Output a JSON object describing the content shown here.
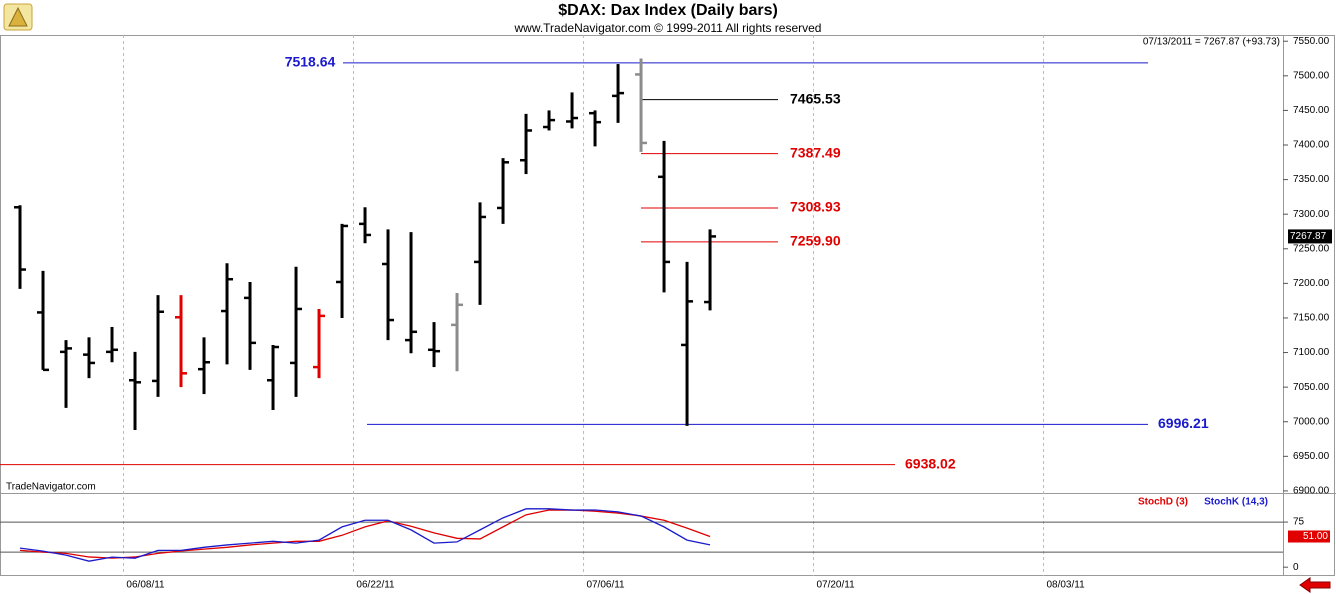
{
  "chart_data": [
    {
      "type": "ohlc",
      "title": "$DAX:  Dax Index  (Daily bars)",
      "subtitle": "www.TradeNavigator.com © 1999-2011 All rights reserved",
      "last_bar_info": "07/13/2011 = 7267.87 (+93.73)",
      "last_price": 7267.87,
      "watermark": "TradeNavigator.com",
      "open": [
        7310,
        7158,
        7101,
        7097,
        7101,
        7060,
        7059,
        7151,
        7076,
        7160,
        7179,
        7060,
        7085,
        7079,
        7202,
        7286,
        7228,
        7118,
        7104,
        7140,
        7231,
        7309,
        7378,
        7426,
        7434,
        7446,
        7471,
        7502,
        7354,
        7111,
        7173
      ],
      "high": [
        7313,
        7218,
        7118,
        7122,
        7137,
        7101,
        7183,
        7183,
        7122,
        7229,
        7202,
        7111,
        7224,
        7163,
        7286,
        7310,
        7278,
        7274,
        7144,
        7186,
        7317,
        7381,
        7445,
        7450,
        7476,
        7450,
        7517,
        7525,
        7406,
        7231,
        7278
      ],
      "low": [
        7192,
        7075,
        7020,
        7063,
        7086,
        6988,
        7036,
        7050,
        7040,
        7083,
        7075,
        7017,
        7036,
        7063,
        7150,
        7258,
        7118,
        7099,
        7079,
        7073,
        7169,
        7286,
        7358,
        7421,
        7424,
        7398,
        7432,
        7390,
        7187,
        6994,
        7161
      ],
      "close": [
        7220,
        7075,
        7106,
        7085,
        7104,
        7057,
        7159,
        7070,
        7086,
        7206,
        7114,
        7108,
        7163,
        7153,
        7283,
        7270,
        7147,
        7130,
        7102,
        7169,
        7296,
        7375,
        7421,
        7436,
        7439,
        7433,
        7475,
        7403,
        7231,
        7174,
        7267.87
      ],
      "colors": [
        "#000000",
        "#000000",
        "#000000",
        "#000000",
        "#000000",
        "#000000",
        "#000000",
        "#e00000",
        "#000000",
        "#000000",
        "#000000",
        "#000000",
        "#000000",
        "#e00000",
        "#000000",
        "#000000",
        "#000000",
        "#000000",
        "#000000",
        "#8c8c8c",
        "#000000",
        "#000000",
        "#000000",
        "#000000",
        "#000000",
        "#000000",
        "#000000",
        "#8c8c8c",
        "#000000",
        "#000000",
        "#000000"
      ],
      "xlim": [
        -0.87,
        54.91
      ],
      "xticks": [
        {
          "value": 4.5,
          "label": "06/08/11"
        },
        {
          "value": 14.5,
          "label": "06/22/11"
        },
        {
          "value": 24.5,
          "label": "07/06/11"
        },
        {
          "value": 34.5,
          "label": "07/20/11"
        },
        {
          "value": 44.5,
          "label": "08/03/11"
        }
      ],
      "ylim": [
        6897,
        7559
      ],
      "yticks": [
        {
          "value": 7550,
          "label": "7550.00"
        },
        {
          "value": 7500,
          "label": "7500.00"
        },
        {
          "value": 7450,
          "label": "7450.00"
        },
        {
          "value": 7400,
          "label": "7400.00"
        },
        {
          "value": 7350,
          "label": "7350.00"
        },
        {
          "value": 7300,
          "label": "7300.00"
        },
        {
          "value": 7250,
          "label": "7250.00"
        },
        {
          "value": 7200,
          "label": "7200.00"
        },
        {
          "value": 7150,
          "label": "7150.00"
        },
        {
          "value": 7100,
          "label": "7100.00"
        },
        {
          "value": 7050,
          "label": "7050.00"
        },
        {
          "value": 7000,
          "label": "7000.00"
        },
        {
          "value": 6950,
          "label": "6950.00"
        },
        {
          "value": 6900,
          "label": "6900.00"
        }
      ],
      "levels": [
        {
          "price": 7518.64,
          "color": "#1a1acc"
        },
        {
          "price": 7465.53,
          "color": "#000000"
        },
        {
          "price": 7387.49,
          "color": "#e00000"
        },
        {
          "price": 7308.93,
          "color": "#e00000"
        },
        {
          "price": {
            "value": 7259.9,
            "label": "7259.90"
          },
          "color": "#e00000"
        },
        {
          "price": 6996.21,
          "color": "#1a1acc"
        },
        {
          "price": 6938.02,
          "color": "#e00000"
        }
      ]
    },
    {
      "type": "line",
      "series": [
        {
          "name": "StochD (3)",
          "color": "#e00000",
          "value_label": "51.00",
          "values": [
            28,
            25,
            23,
            17,
            15,
            17,
            23,
            27,
            30,
            33,
            37,
            40,
            43,
            43,
            53,
            67,
            77,
            68,
            57,
            48,
            47,
            67,
            87,
            95,
            95,
            93,
            90,
            85,
            78,
            65,
            51
          ]
        },
        {
          "name": "StochK (14,3)",
          "color": "#1a1acc",
          "values": [
            31.7,
            26.7,
            20,
            10,
            16.7,
            15,
            28,
            28,
            33,
            37,
            40,
            43,
            40,
            45,
            67,
            78,
            78,
            62,
            40,
            42,
            62,
            82,
            97,
            97,
            95,
            95,
            92,
            85,
            67,
            45,
            37
          ]
        }
      ],
      "ylim": [
        -13,
        120
      ],
      "yticks": [
        75,
        0
      ],
      "levels": [
        75,
        25
      ]
    }
  ]
}
